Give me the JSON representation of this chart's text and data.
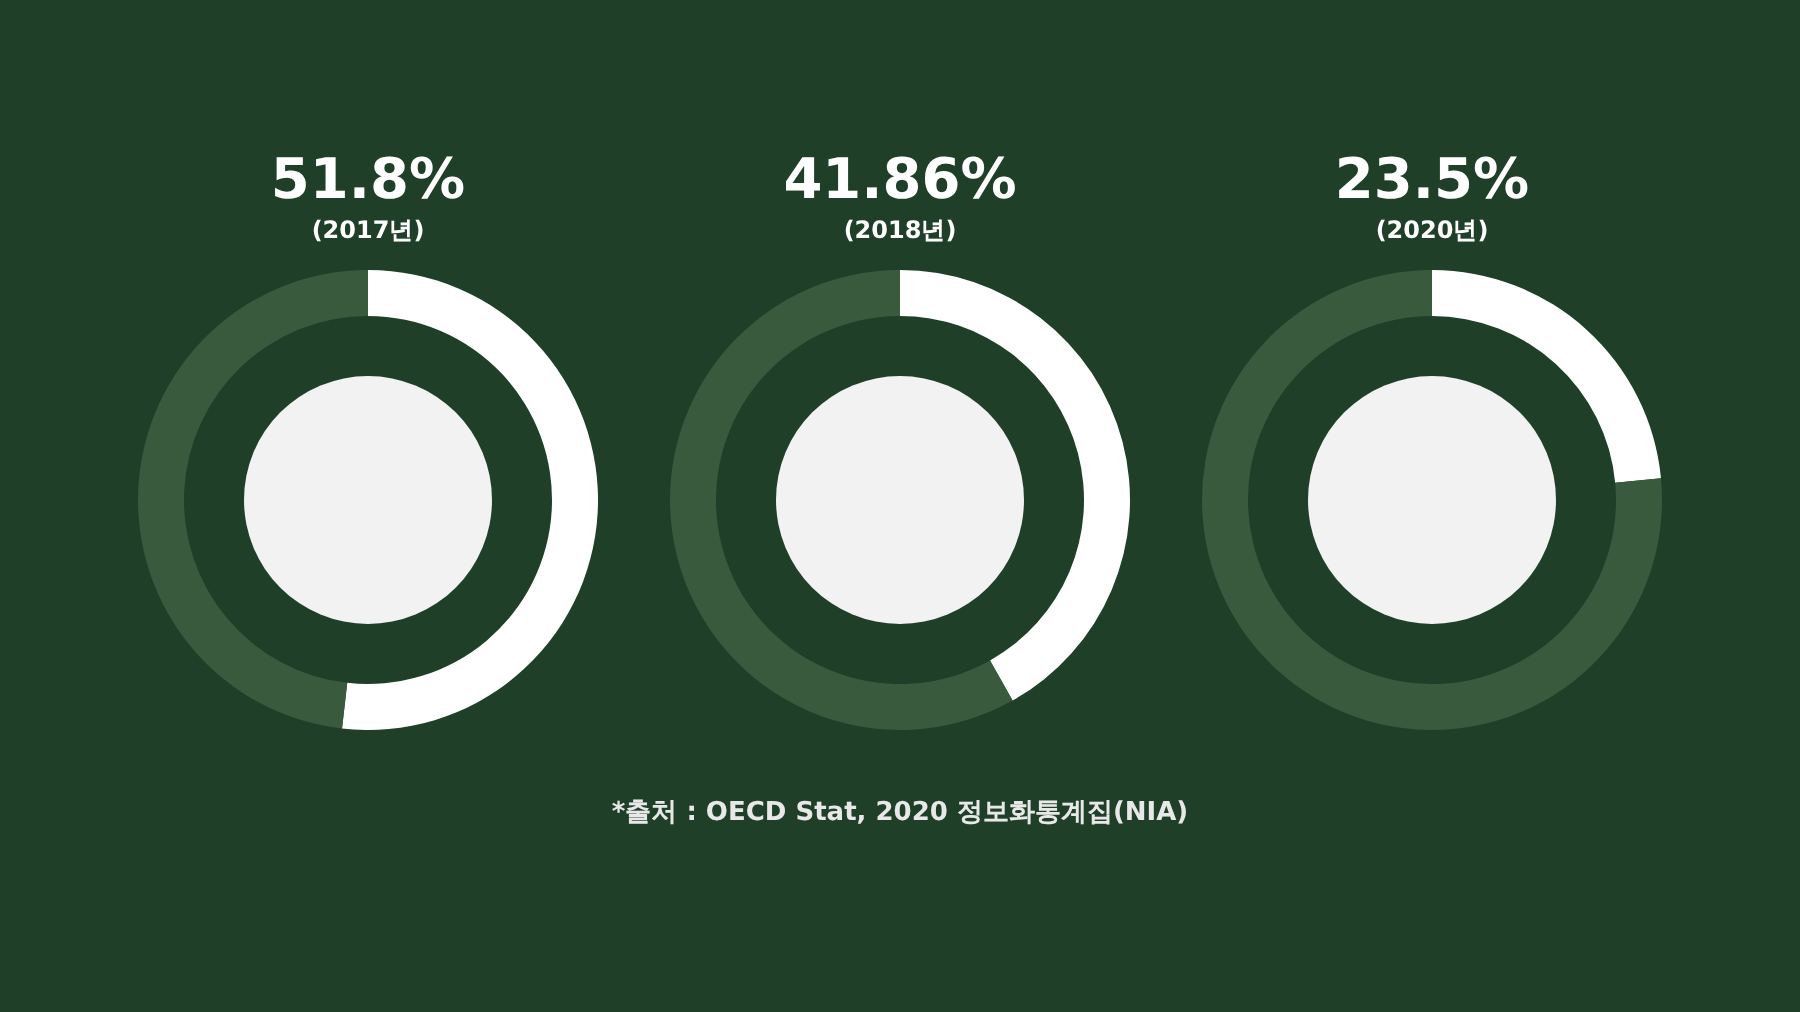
{
  "chart_data": [
    {
      "type": "donut",
      "title": "(2017년)",
      "categories": [
        null,
        null
      ],
      "values": [
        51.8,
        48.2
      ],
      "colors": [
        "#ffffff",
        "#3a5a3e"
      ],
      "value_labels": [
        "51.8%",
        null
      ]
    },
    {
      "type": "donut",
      "title": "(2018년)",
      "categories": [
        null,
        null
      ],
      "values": [
        41.86,
        58.14
      ],
      "colors": [
        "#ffffff",
        "#3a5a3e"
      ],
      "value_labels": [
        "41.86%",
        null
      ],
      "annotations": [
        "*출처 : OECD Stat, 2020 정보화통계집(NIA)"
      ]
    },
    {
      "type": "donut",
      "title": "(2020년)",
      "categories": [
        null,
        null
      ],
      "values": [
        23.5,
        76.5
      ],
      "colors": [
        "#ffffff",
        "#3a5a3e"
      ],
      "value_labels": [
        "23.5%",
        null
      ]
    }
  ]
}
